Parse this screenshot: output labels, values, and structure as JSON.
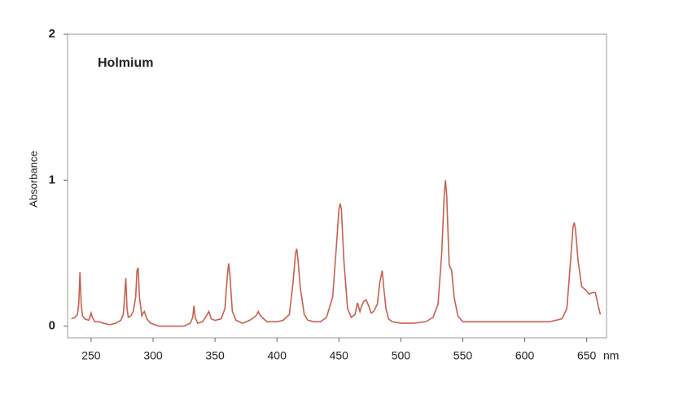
{
  "chart_data": {
    "type": "line",
    "title": "Holmium",
    "y_label": "Absorbance",
    "x_label": "nm",
    "xlim": [
      231,
      666
    ],
    "ylim": [
      -0.08,
      2
    ],
    "xticks": [
      250,
      300,
      350,
      400,
      450,
      500,
      550,
      600,
      650
    ],
    "yticks": [
      0,
      1,
      2
    ],
    "x": [
      234,
      237,
      239,
      240,
      241,
      242,
      243,
      245,
      248,
      249,
      250,
      251,
      253,
      256,
      260,
      265,
      270,
      274,
      276,
      277,
      278,
      279,
      280,
      282,
      284,
      286,
      287,
      288,
      289,
      291,
      292,
      293,
      295,
      298,
      305,
      315,
      325,
      330,
      332,
      333,
      334,
      336,
      340,
      343,
      345,
      347,
      350,
      355,
      358,
      360,
      361,
      362,
      364,
      367,
      372,
      378,
      383,
      385,
      386,
      388,
      392,
      400,
      405,
      410,
      413,
      415,
      416,
      417,
      419,
      420,
      422,
      425,
      430,
      435,
      440,
      445,
      448,
      450,
      451,
      452,
      454,
      457,
      460,
      463,
      465,
      467,
      468,
      470,
      472,
      474,
      476,
      478,
      481,
      483,
      485,
      486,
      488,
      490,
      493,
      500,
      510,
      520,
      526,
      530,
      533,
      535,
      536,
      537,
      539,
      541,
      543,
      546,
      550,
      560,
      580,
      600,
      620,
      630,
      634,
      637,
      639,
      640,
      641,
      643,
      646,
      649,
      652,
      655,
      657,
      659,
      661
    ],
    "series": [
      {
        "name": "Holmium",
        "color": "#c9604f",
        "values": [
          0.05,
          0.06,
          0.08,
          0.15,
          0.37,
          0.15,
          0.07,
          0.05,
          0.04,
          0.06,
          0.09,
          0.06,
          0.03,
          0.03,
          0.02,
          0.01,
          0.02,
          0.04,
          0.08,
          0.2,
          0.33,
          0.12,
          0.06,
          0.07,
          0.1,
          0.2,
          0.38,
          0.4,
          0.2,
          0.07,
          0.09,
          0.1,
          0.05,
          0.02,
          0.0,
          0.0,
          0.0,
          0.02,
          0.06,
          0.14,
          0.06,
          0.02,
          0.03,
          0.07,
          0.1,
          0.05,
          0.04,
          0.05,
          0.12,
          0.35,
          0.43,
          0.35,
          0.1,
          0.04,
          0.02,
          0.04,
          0.07,
          0.1,
          0.08,
          0.06,
          0.03,
          0.03,
          0.04,
          0.08,
          0.3,
          0.5,
          0.53,
          0.45,
          0.25,
          0.2,
          0.08,
          0.04,
          0.03,
          0.03,
          0.06,
          0.2,
          0.55,
          0.8,
          0.84,
          0.8,
          0.45,
          0.12,
          0.06,
          0.08,
          0.16,
          0.1,
          0.13,
          0.17,
          0.18,
          0.14,
          0.09,
          0.1,
          0.15,
          0.3,
          0.38,
          0.28,
          0.12,
          0.05,
          0.03,
          0.02,
          0.02,
          0.03,
          0.06,
          0.15,
          0.5,
          0.9,
          1.0,
          0.9,
          0.42,
          0.38,
          0.2,
          0.07,
          0.03,
          0.03,
          0.03,
          0.03,
          0.03,
          0.05,
          0.12,
          0.45,
          0.68,
          0.71,
          0.66,
          0.45,
          0.27,
          0.25,
          0.22,
          0.23,
          0.23,
          0.15,
          0.08
        ]
      }
    ]
  }
}
